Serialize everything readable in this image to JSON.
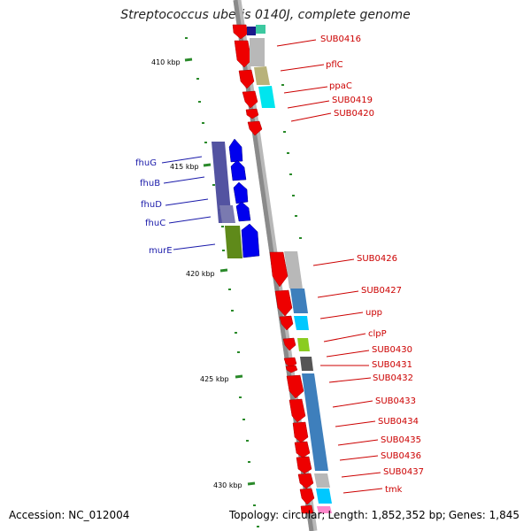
{
  "title": "Streptococcus uberis 0140J, complete genome",
  "footer": {
    "accession": "Accession: NC_012004",
    "topology": "Topology: circular;",
    "length": "Length: 1,852,352 bp;",
    "genes": "Genes: 1,845"
  },
  "ticks": [
    "410 kbp",
    "415 kbp",
    "420 kbp",
    "425 kbp",
    "430 kbp"
  ],
  "left_genes": [
    "fhuG",
    "fhuB",
    "fhuD",
    "fhuC",
    "murE"
  ],
  "right_genes": [
    "SUB0416",
    "pflC",
    "ppaC",
    "SUB0419",
    "SUB0420",
    "SUB0426",
    "SUB0427",
    "upp",
    "clpP",
    "SUB0430",
    "SUB0431",
    "SUB0432",
    "SUB0433",
    "SUB0434",
    "SUB0435",
    "SUB0436",
    "SUB0437",
    "tmk"
  ],
  "colors": {
    "forward_cds": "#0000ee",
    "reverse_cds": "#ee0000",
    "backbone": "#8a8a8a",
    "tick_marks": "#2a8a2a",
    "left_label": "#1a1aaa",
    "right_label": "#cc0000"
  }
}
